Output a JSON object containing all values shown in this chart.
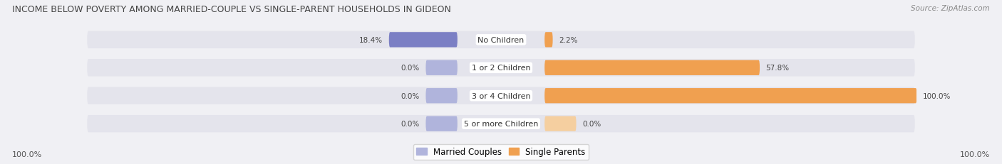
{
  "title": "INCOME BELOW POVERTY AMONG MARRIED-COUPLE VS SINGLE-PARENT HOUSEHOLDS IN GIDEON",
  "source": "Source: ZipAtlas.com",
  "categories": [
    "No Children",
    "1 or 2 Children",
    "3 or 4 Children",
    "5 or more Children"
  ],
  "married_values": [
    18.4,
    0.0,
    0.0,
    0.0
  ],
  "single_values": [
    2.2,
    57.8,
    100.0,
    0.0
  ],
  "married_color_full": "#7b7fc4",
  "married_color_stub": "#b0b4dc",
  "single_color_full": "#f0a050",
  "single_color_stub": "#f5cfa0",
  "bar_bg_color": "#e4e4ec",
  "bg_color": "#f0f0f4",
  "x_left_label": "100.0%",
  "x_right_label": "100.0%",
  "legend_married": "Married Couples",
  "legend_single": "Single Parents",
  "figsize": [
    14.06,
    2.32
  ],
  "dpi": 100
}
